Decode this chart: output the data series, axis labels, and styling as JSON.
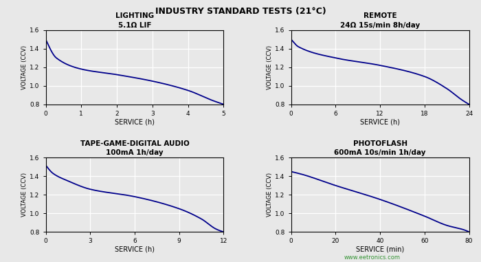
{
  "main_title": "INDUSTRY STANDARD TESTS (21°C)",
  "background_color": "#e8e8e8",
  "plot_bg_color": "#e8e8e8",
  "line_color": "#00008B",
  "subplots": [
    {
      "title1": "LIGHTING",
      "title2": "5.1Ω LIF",
      "xlabel": "SERVICE (h)",
      "ylabel": "VOLTAGE (CCV)",
      "xmax": 5,
      "xticks": [
        0,
        1,
        2,
        3,
        4,
        5
      ],
      "yticks": [
        0.8,
        1.0,
        1.2,
        1.4,
        1.6
      ],
      "ymin": 0.8,
      "ymax": 1.6,
      "curve_type": "lighting"
    },
    {
      "title1": "REMOTE",
      "title2": "24Ω 15s/min 8h/day",
      "xlabel": "SERVICE (h)",
      "ylabel": "VOLTAGE (CCV)",
      "xmax": 24,
      "xticks": [
        0,
        6,
        12,
        18,
        24
      ],
      "yticks": [
        0.8,
        1.0,
        1.2,
        1.4,
        1.6
      ],
      "ymin": 0.8,
      "ymax": 1.6,
      "curve_type": "remote"
    },
    {
      "title1": "TAPE-GAME-DIGITAL AUDIO",
      "title2": "100mA 1h/day",
      "xlabel": "SERVICE (h)",
      "ylabel": "VOLTAGE (CCV)",
      "xmax": 12,
      "xticks": [
        0,
        3,
        6,
        9,
        12
      ],
      "yticks": [
        0.8,
        1.0,
        1.2,
        1.4,
        1.6
      ],
      "ymin": 0.8,
      "ymax": 1.6,
      "curve_type": "tape"
    },
    {
      "title1": "PHOTOFLASH",
      "title2": "600mA 10s/min 1h/day",
      "xlabel": "SERVICE (min)",
      "ylabel": "VOLTAGE (CCV)",
      "xmax": 80,
      "xticks": [
        0,
        20,
        40,
        60,
        80
      ],
      "yticks": [
        0.8,
        1.0,
        1.2,
        1.4,
        1.6
      ],
      "ymin": 0.8,
      "ymax": 1.6,
      "curve_type": "photoflash"
    }
  ]
}
